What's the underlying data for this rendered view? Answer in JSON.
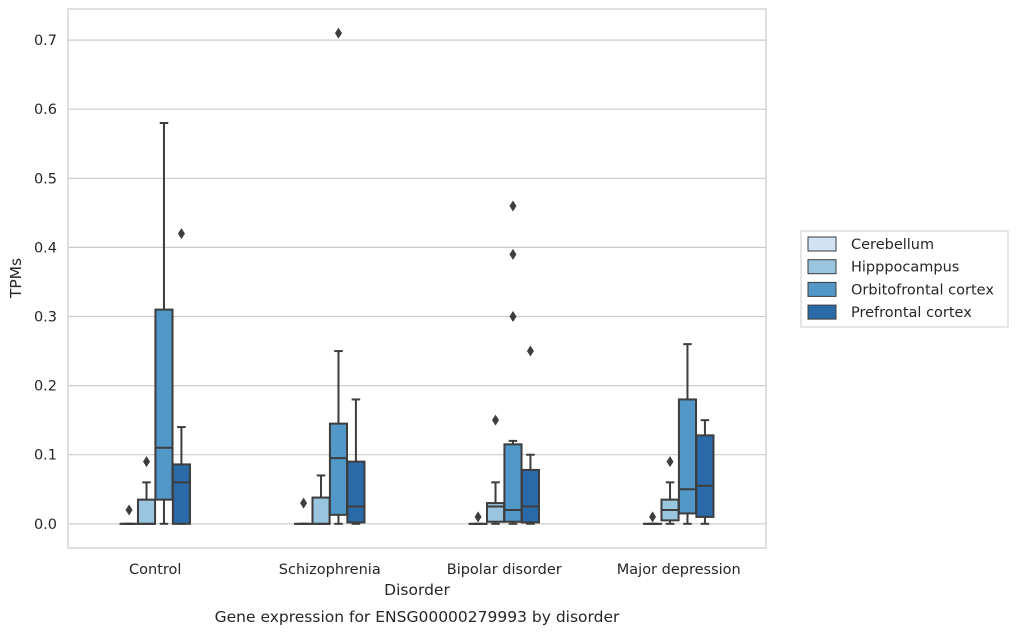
{
  "chart_data": {
    "type": "boxplot",
    "caption": "Gene expression for ENSG00000279993 by disorder",
    "xlabel": "Disorder",
    "ylabel": "TPMs",
    "ylim": [
      -0.035,
      0.745
    ],
    "yticks": [
      0.0,
      0.1,
      0.2,
      0.3,
      0.4,
      0.5,
      0.6,
      0.7
    ],
    "ytick_labels": [
      "0.0",
      "0.1",
      "0.2",
      "0.3",
      "0.4",
      "0.5",
      "0.6",
      "0.7"
    ],
    "grid": "horizontal",
    "legend_position": "outside right",
    "categories": [
      "Control",
      "Schizophrenia",
      "Bipolar disorder",
      "Major depression"
    ],
    "series": [
      {
        "name": "Cerebellum",
        "color": "#d1e2f2",
        "boxes": [
          {
            "q1": 0.0,
            "median": 0.0,
            "q3": 0.0,
            "whisker_low": 0.0,
            "whisker_high": 0.0,
            "outliers": [
              0.02
            ]
          },
          {
            "q1": 0.0,
            "median": 0.0,
            "q3": 0.0,
            "whisker_low": 0.0,
            "whisker_high": 0.0,
            "outliers": [
              0.03
            ]
          },
          {
            "q1": 0.0,
            "median": 0.0,
            "q3": 0.0,
            "whisker_low": 0.0,
            "whisker_high": 0.0,
            "outliers": [
              0.01
            ]
          },
          {
            "q1": 0.0,
            "median": 0.0,
            "q3": 0.0,
            "whisker_low": 0.0,
            "whisker_high": 0.0,
            "outliers": [
              0.01
            ]
          }
        ]
      },
      {
        "name": "Hipppocampus",
        "color": "#9ac5de",
        "boxes": [
          {
            "q1": 0.0,
            "median": 0.0,
            "q3": 0.035,
            "whisker_low": 0.0,
            "whisker_high": 0.06,
            "outliers": [
              0.09
            ]
          },
          {
            "q1": 0.0,
            "median": 0.0,
            "q3": 0.038,
            "whisker_low": 0.0,
            "whisker_high": 0.07,
            "outliers": []
          },
          {
            "q1": 0.003,
            "median": 0.025,
            "q3": 0.03,
            "whisker_low": 0.0,
            "whisker_high": 0.06,
            "outliers": [
              0.15
            ]
          },
          {
            "q1": 0.005,
            "median": 0.02,
            "q3": 0.035,
            "whisker_low": 0.0,
            "whisker_high": 0.06,
            "outliers": [
              0.09
            ]
          }
        ]
      },
      {
        "name": "Orbitofrontal cortex",
        "color": "#5197c7",
        "boxes": [
          {
            "q1": 0.035,
            "median": 0.11,
            "q3": 0.31,
            "whisker_low": 0.0,
            "whisker_high": 0.58,
            "outliers": []
          },
          {
            "q1": 0.013,
            "median": 0.095,
            "q3": 0.145,
            "whisker_low": 0.0,
            "whisker_high": 0.25,
            "outliers": [
              0.71
            ]
          },
          {
            "q1": 0.003,
            "median": 0.02,
            "q3": 0.115,
            "whisker_low": 0.0,
            "whisker_high": 0.12,
            "outliers": [
              0.46,
              0.39,
              0.3
            ]
          },
          {
            "q1": 0.015,
            "median": 0.05,
            "q3": 0.18,
            "whisker_low": 0.0,
            "whisker_high": 0.26,
            "outliers": []
          }
        ]
      },
      {
        "name": "Prefrontal cortex",
        "color": "#2b6aa8",
        "boxes": [
          {
            "q1": 0.0,
            "median": 0.06,
            "q3": 0.086,
            "whisker_low": 0.0,
            "whisker_high": 0.14,
            "outliers": [
              0.42
            ]
          },
          {
            "q1": 0.002,
            "median": 0.025,
            "q3": 0.09,
            "whisker_low": 0.0,
            "whisker_high": 0.18,
            "outliers": []
          },
          {
            "q1": 0.002,
            "median": 0.025,
            "q3": 0.078,
            "whisker_low": 0.0,
            "whisker_high": 0.1,
            "outliers": [
              0.25
            ]
          },
          {
            "q1": 0.01,
            "median": 0.055,
            "q3": 0.128,
            "whisker_low": 0.0,
            "whisker_high": 0.15,
            "outliers": []
          }
        ]
      }
    ]
  },
  "colors": {
    "grid": "#cccccc",
    "frame": "#cccccc",
    "box_edge": "#3d3d3d",
    "text": "#262626"
  }
}
